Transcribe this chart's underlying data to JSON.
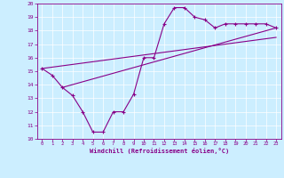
{
  "xlabel": "Windchill (Refroidissement éolien,°C)",
  "xlim": [
    -0.5,
    23.5
  ],
  "ylim": [
    10,
    20
  ],
  "xticks": [
    0,
    1,
    2,
    3,
    4,
    5,
    6,
    7,
    8,
    9,
    10,
    11,
    12,
    13,
    14,
    15,
    16,
    17,
    18,
    19,
    20,
    21,
    22,
    23
  ],
  "yticks": [
    10,
    11,
    12,
    13,
    14,
    15,
    16,
    17,
    18,
    19,
    20
  ],
  "bg_color": "#cceeff",
  "line_color": "#880088",
  "line1_x": [
    0,
    1,
    2,
    3,
    4,
    5,
    6,
    7,
    8,
    9,
    10,
    11,
    12,
    13,
    14,
    15,
    16,
    17,
    18,
    19,
    20,
    21,
    22,
    23
  ],
  "line1_y": [
    15.2,
    14.7,
    13.8,
    13.2,
    12.0,
    10.5,
    10.5,
    12.0,
    12.0,
    13.3,
    16.0,
    16.0,
    18.5,
    19.7,
    19.7,
    19.0,
    18.8,
    18.2,
    18.5,
    18.5,
    18.5,
    18.5,
    18.5,
    18.2
  ],
  "line2_x": [
    0,
    23
  ],
  "line2_y": [
    15.2,
    17.5
  ],
  "line3_x": [
    2,
    23
  ],
  "line3_y": [
    13.8,
    18.2
  ]
}
